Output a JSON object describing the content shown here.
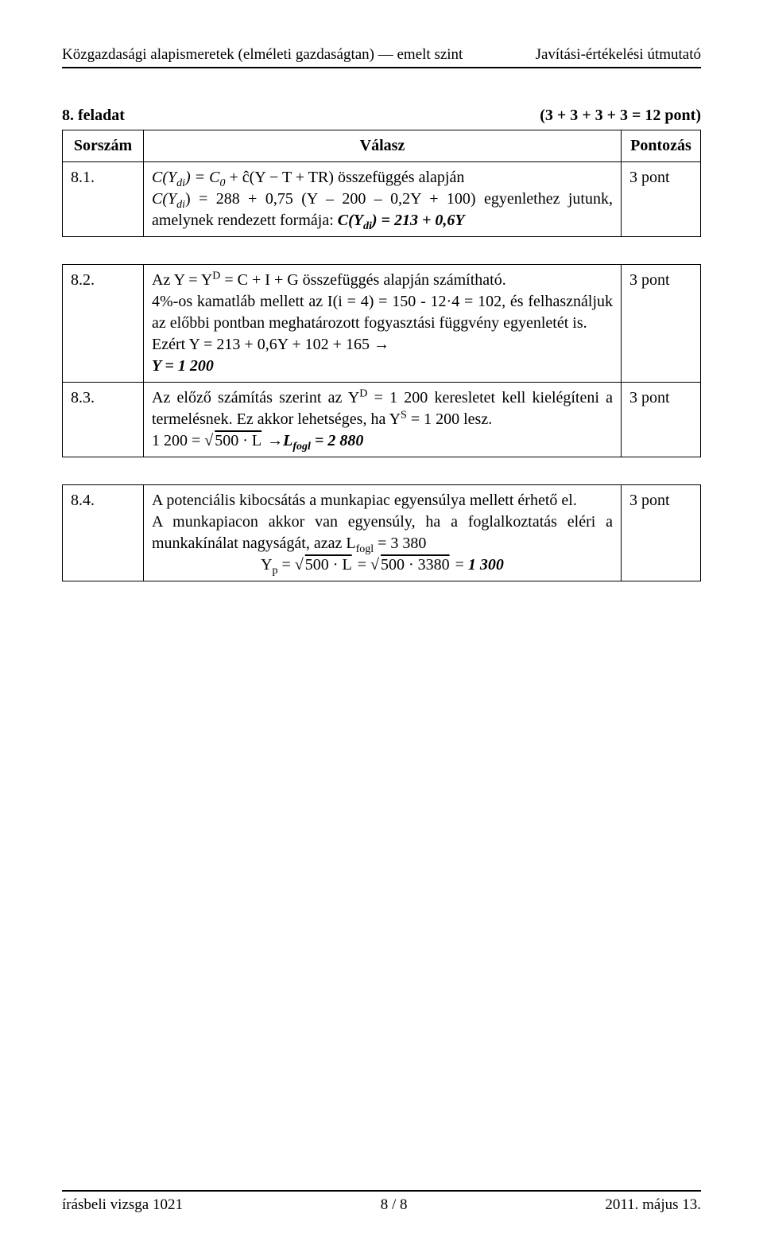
{
  "header": {
    "left": "Közgazdasági alapismeretek (elméleti gazdaságtan) — emelt szint",
    "right": "Javítási-értékelési útmutató"
  },
  "title": {
    "left": "8. feladat",
    "right": "(3 + 3 + 3 + 3 = 12 pont)"
  },
  "table": {
    "head": {
      "c1": "Sorszám",
      "c2": "Válasz",
      "c3": "Pontozás"
    },
    "row1": {
      "id": "8.1.",
      "pts": "3 pont",
      "line1a": "C(Y",
      "line1a_sub": "di",
      "line1b": ") = C",
      "line1b_sub": "0",
      "line1c": " + ĉ(Y − T + TR)  összefüggés alapján",
      "line2a": "C(Y",
      "line2a_sub": "di",
      "line2b": ") = 288 + 0,75 (Y – 200 – 0,2Y + 100) egyenlethez jutunk, amelynek rendezett formája: ",
      "line2c": "C(Y",
      "line2c_sub": "di",
      "line2d": ") = 213 + 0,6Y"
    },
    "row2": {
      "id": "8.2.",
      "pts": "3 pont",
      "l1a": "Az Y = Y",
      "l1sup": "D",
      "l1b": " = C + I + G összefüggés alapján számítható.",
      "l2": "4%-os kamatláb mellett az I(i = 4) = 150 - 12·4 = 102, és felhasználjuk az előbbi pontban meghatározott fogyasztási függvény egyenletét is.",
      "l3": "Ezért Y = 213 + 0,6Y + 102 + 165  →",
      "l4": "Y = 1 200"
    },
    "row3": {
      "id": "8.3.",
      "pts": "3 pont",
      "l1a": "Az előző számítás szerint az Y",
      "l1sup": "D",
      "l1b": " = 1 200 keresletet kell kielégíteni a termelésnek. Ez akkor lehetséges, ha Y",
      "l1sup2": "S",
      "l1c": " = 1 200 lesz.",
      "l2a": "1 200 = ",
      "l2rad": "500 · L",
      "l2b": "  →",
      "l2c": "L",
      "l2sub": "fogl",
      "l2d": " = 2 880"
    },
    "row4": {
      "id": "8.4.",
      "pts": "3 pont",
      "l1": "A potenciális kibocsátás a munkapiac egyensúlya mellett érhető el.",
      "l2a": "A munkapiacon akkor van egyensúly, ha a foglalkoztatás eléri a munkakínálat nagyságát, azaz L",
      "l2sub": "fogl",
      "l2b": " = 3 380",
      "l3a": "Y",
      "l3sub": "p",
      "l3b": " = ",
      "l3rad1": "500 · L",
      "l3c": " = ",
      "l3rad2": "500 · 3380",
      "l3d": " = ",
      "l3e": "1 300"
    }
  },
  "footer": {
    "left": "írásbeli vizsga 1021",
    "center": "8 / 8",
    "right": "2011. május 13."
  }
}
